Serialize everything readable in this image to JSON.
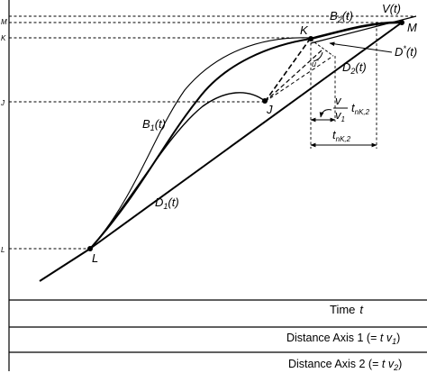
{
  "y_tick_labels": {
    "M": "M",
    "K": "K",
    "J": "J",
    "L": "L"
  },
  "points": {
    "L": "L",
    "J": "J",
    "K": "K",
    "M": "M"
  },
  "curves": {
    "B1": {
      "main": "B",
      "sub": "1",
      "arg": "(t)"
    },
    "B2": {
      "main": "B",
      "sub": "2",
      "arg": "(t)"
    },
    "D1": {
      "main": "D",
      "sub": "1",
      "arg": "(t)"
    },
    "D2": {
      "main": "D",
      "sub": "2",
      "arg": "(t)"
    },
    "Dstar": {
      "main": "D",
      "sup": "*",
      "arg": "(t)"
    },
    "V": {
      "main": "V",
      "arg": "(t)"
    }
  },
  "angle_label": {
    "main": "u",
    "sup": "*"
  },
  "dims": {
    "small": {
      "num": "v",
      "den_main": "v",
      "den_sub": "1",
      "t_main": "t",
      "t_sub": "nK,2"
    },
    "large": {
      "t_main": "t",
      "t_sub": "nK,2"
    }
  },
  "axes": {
    "time": {
      "label": "Time",
      "var": "t"
    },
    "dist1": {
      "text": "Distance Axis 1 (= ",
      "tv": "t v",
      "sub": "1",
      "close": ")"
    },
    "dist2": {
      "text": "Distance Axis 2 (= ",
      "tv": "t v",
      "sub": "2",
      "close": ")"
    }
  }
}
